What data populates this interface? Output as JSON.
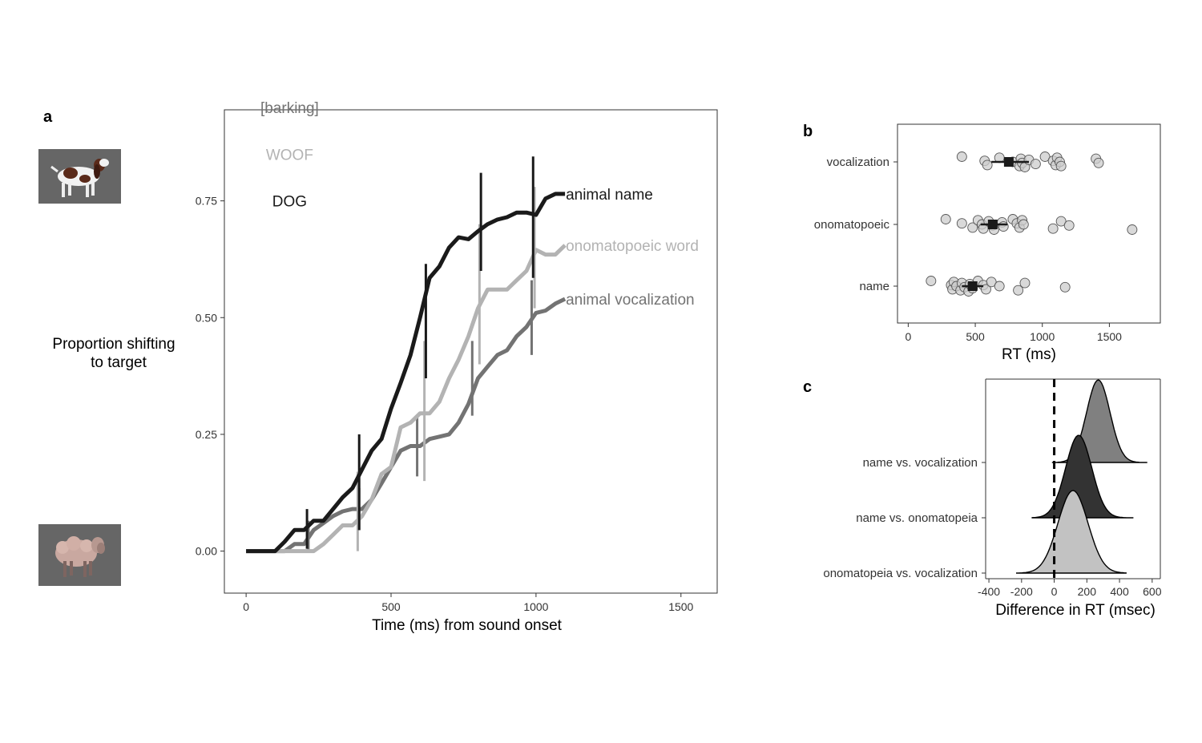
{
  "panels": {
    "a": {
      "letter": "a"
    },
    "b": {
      "letter": "b"
    },
    "c": {
      "letter": "c"
    }
  },
  "colors": {
    "animal_name": "#1a1a1a",
    "onomatopoeic_word": "#b3b3b3",
    "animal_vocalization": "#737373",
    "picture_background": "#666666",
    "panel_border": "#333333"
  },
  "images": {
    "top_target": "dog-photo",
    "bottom_target": "sheep-photo"
  },
  "chart_data": [
    {
      "id": "a",
      "type": "line",
      "xlabel": "Time (ms) from sound onset",
      "ylabel_lines": [
        "Proportion shifting",
        "to target"
      ],
      "xlim": [
        -75,
        1625
      ],
      "ylim": [
        -0.09,
        0.945
      ],
      "xticks": [
        0,
        500,
        1000,
        1500
      ],
      "xtick_labels": [
        "0",
        "500",
        "1000",
        "1500"
      ],
      "yticks": [
        0,
        0.25,
        0.5,
        0.75
      ],
      "ytick_labels": [
        "0.00",
        "0.25",
        "0.50",
        "0.75"
      ],
      "grid": false,
      "legend_items": [
        {
          "text": "DOG",
          "color": "#1a1a1a"
        },
        {
          "text": "WOOF",
          "color": "#b3b3b3"
        },
        {
          "text": "[barking]",
          "color": "#737373"
        }
      ],
      "series": [
        {
          "name": "animal name",
          "color": "#1a1a1a",
          "x": [
            0,
            33,
            67,
            100,
            133,
            167,
            200,
            233,
            267,
            300,
            333,
            367,
            400,
            433,
            467,
            500,
            533,
            567,
            600,
            633,
            667,
            700,
            733,
            767,
            800,
            833,
            867,
            900,
            933,
            967,
            1000,
            1033,
            1067,
            1100
          ],
          "y": [
            0,
            0,
            0,
            0,
            0.02,
            0.045,
            0.045,
            0.065,
            0.065,
            0.09,
            0.115,
            0.135,
            0.175,
            0.215,
            0.24,
            0.305,
            0.36,
            0.42,
            0.5,
            0.585,
            0.61,
            0.65,
            0.672,
            0.668,
            0.685,
            0.7,
            0.71,
            0.715,
            0.725,
            0.725,
            0.72,
            0.755,
            0.765,
            0.765
          ],
          "errorbars": [
            {
              "x": 210,
              "low": 0.005,
              "high": 0.09
            },
            {
              "x": 390,
              "low": 0.045,
              "high": 0.25
            },
            {
              "x": 620,
              "low": 0.37,
              "high": 0.615
            },
            {
              "x": 810,
              "low": 0.6,
              "high": 0.81
            },
            {
              "x": 990,
              "low": 0.585,
              "high": 0.845
            }
          ]
        },
        {
          "name": "onomatopoeic word",
          "color": "#b3b3b3",
          "x": [
            0,
            33,
            67,
            100,
            133,
            167,
            200,
            233,
            267,
            300,
            333,
            367,
            400,
            433,
            467,
            500,
            533,
            567,
            600,
            633,
            667,
            700,
            733,
            767,
            800,
            833,
            867,
            900,
            933,
            967,
            1000,
            1033,
            1067,
            1100
          ],
          "y": [
            0,
            0,
            0,
            0,
            0,
            0,
            0,
            0,
            0.015,
            0.035,
            0.055,
            0.055,
            0.075,
            0.11,
            0.165,
            0.18,
            0.265,
            0.275,
            0.295,
            0.295,
            0.32,
            0.37,
            0.41,
            0.46,
            0.52,
            0.56,
            0.56,
            0.56,
            0.58,
            0.6,
            0.645,
            0.635,
            0.635,
            0.655
          ],
          "errorbars": [
            {
              "x": 385,
              "low": 0.0,
              "high": 0.17
            },
            {
              "x": 615,
              "low": 0.15,
              "high": 0.45
            },
            {
              "x": 805,
              "low": 0.4,
              "high": 0.7
            },
            {
              "x": 995,
              "low": 0.52,
              "high": 0.78
            }
          ]
        },
        {
          "name": "animal vocalization",
          "color": "#737373",
          "x": [
            0,
            33,
            67,
            100,
            133,
            167,
            200,
            233,
            267,
            300,
            333,
            367,
            400,
            433,
            467,
            500,
            533,
            567,
            600,
            633,
            667,
            700,
            733,
            767,
            800,
            833,
            867,
            900,
            933,
            967,
            1000,
            1033,
            1067,
            1100
          ],
          "y": [
            0,
            0,
            0,
            0,
            0,
            0.015,
            0.015,
            0.045,
            0.06,
            0.075,
            0.085,
            0.09,
            0.09,
            0.11,
            0.145,
            0.18,
            0.215,
            0.225,
            0.225,
            0.24,
            0.245,
            0.25,
            0.275,
            0.315,
            0.37,
            0.395,
            0.42,
            0.43,
            0.46,
            0.48,
            0.51,
            0.515,
            0.53,
            0.54
          ],
          "errorbars": [
            {
              "x": 215,
              "low": 0.0,
              "high": 0.065
            },
            {
              "x": 390,
              "low": 0.045,
              "high": 0.135
            },
            {
              "x": 590,
              "low": 0.16,
              "high": 0.29
            },
            {
              "x": 780,
              "low": 0.29,
              "high": 0.45
            },
            {
              "x": 985,
              "low": 0.42,
              "high": 0.58
            }
          ]
        }
      ]
    },
    {
      "id": "b",
      "type": "scatter",
      "xlabel": "RT (ms)",
      "xlim": [
        -80,
        1880
      ],
      "xticks": [
        0,
        500,
        1000,
        1500
      ],
      "xtick_labels": [
        "0",
        "500",
        "1000",
        "1500"
      ],
      "categories": [
        "vocalization",
        "onomatopoeic",
        "name"
      ],
      "grid": false,
      "series": [
        {
          "name": "vocalization",
          "points": [
            400,
            570,
            590,
            680,
            780,
            830,
            840,
            850,
            870,
            900,
            950,
            1020,
            1080,
            1100,
            1110,
            1130,
            1140,
            1400,
            1420
          ],
          "mean": 750,
          "ci": [
            620,
            900
          ]
        },
        {
          "name": "onomatopoeic",
          "points": [
            280,
            400,
            480,
            520,
            550,
            560,
            600,
            630,
            640,
            700,
            710,
            780,
            810,
            830,
            850,
            860,
            1080,
            1140,
            1200,
            1670
          ],
          "mean": 630,
          "ci": [
            540,
            740
          ]
        },
        {
          "name": "name",
          "points": [
            170,
            320,
            330,
            340,
            360,
            390,
            400,
            420,
            450,
            460,
            480,
            520,
            560,
            580,
            620,
            680,
            820,
            870,
            1170
          ],
          "mean": 480,
          "ci": [
            400,
            560
          ]
        }
      ]
    },
    {
      "id": "c",
      "type": "area",
      "subtype": "ridgeline",
      "xlabel": "Difference in RT (msec)",
      "xlim": [
        -420,
        650
      ],
      "xticks": [
        -400,
        -200,
        0,
        200,
        400,
        600
      ],
      "xtick_labels": [
        "-400",
        "-200",
        "0",
        "200",
        "400",
        "600"
      ],
      "reference_line": 0,
      "grid": false,
      "series": [
        {
          "name": "name vs. vocalization",
          "mean": 270,
          "sd": 72,
          "lo": -10,
          "hi": 570,
          "color": "#808080"
        },
        {
          "name": "name vs. onomatopeia",
          "mean": 150,
          "sd": 80,
          "lo": -135,
          "hi": 485,
          "color": "#333333"
        },
        {
          "name": "onomatopeia vs. vocalization",
          "mean": 115,
          "sd": 92,
          "lo": -230,
          "hi": 440,
          "color": "#c2c2c2"
        }
      ]
    }
  ]
}
